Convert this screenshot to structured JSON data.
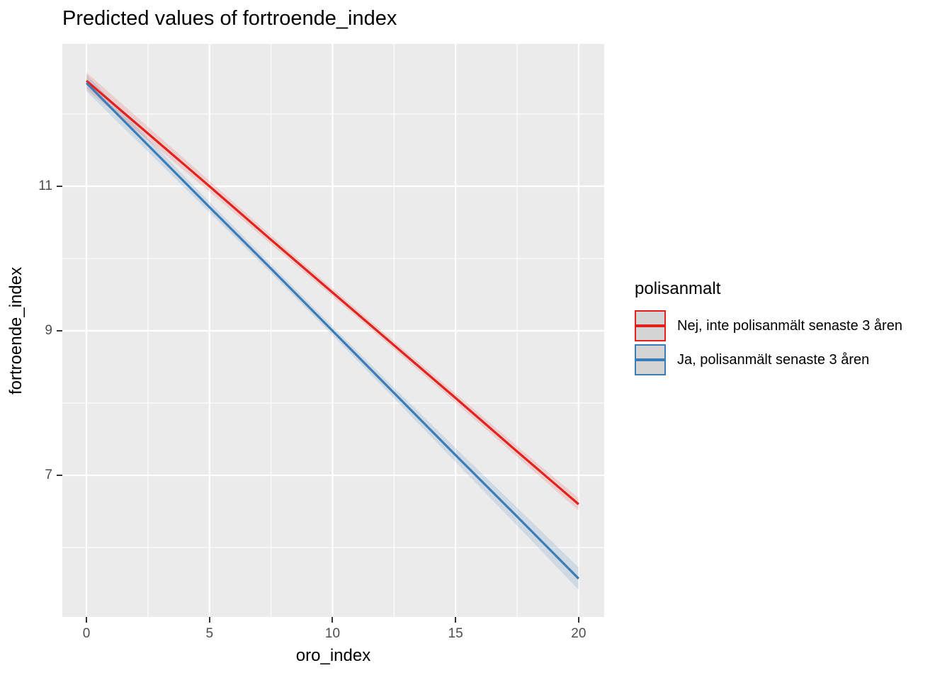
{
  "chart_data": {
    "type": "line",
    "title": "Predicted values of fortroende_index",
    "xlabel": "oro_index",
    "ylabel": "fortroende_index",
    "xlim": [
      -0.98,
      21.04
    ],
    "ylim": [
      5.04,
      12.97
    ],
    "x_major_ticks": [
      0,
      5,
      10,
      15,
      20
    ],
    "x_tick_labels": [
      "0",
      "5",
      "10",
      "15",
      "20"
    ],
    "x_minor_ticks": [
      2.5,
      7.5,
      12.5,
      17.5
    ],
    "y_major_ticks": [
      11,
      9,
      7
    ],
    "y_tick_labels": [
      "11",
      "9",
      "7"
    ],
    "y_minor_ticks": [
      12,
      10,
      8,
      6
    ],
    "grid": true,
    "panel_background": "#EBEBEB",
    "grid_color": "#FFFFFF",
    "tick_label_color": "#4D4D4D",
    "tick_mark_color": "#333333",
    "x": [
      0,
      2.5,
      5,
      7.5,
      10,
      12.5,
      15,
      17.5,
      20
    ],
    "series": [
      {
        "name": "Nej, inte polisanmält senaste 3 åren",
        "color": "#E3211C",
        "band_color": "rgba(227, 33, 28, 0.15)",
        "y": [
          12.46,
          11.73,
          11.0,
          10.26,
          9.53,
          8.8,
          8.07,
          7.33,
          6.6
        ],
        "ci_half_width": [
          0.115,
          0.093,
          0.075,
          0.061,
          0.054,
          0.055,
          0.063,
          0.073,
          0.086
        ]
      },
      {
        "name": "Ja, polisanmält senaste 3 åren",
        "color": "#3A7CB8",
        "band_color": "rgba(58, 124, 184, 0.16)",
        "y": [
          12.43,
          11.57,
          10.71,
          9.86,
          9.0,
          8.14,
          7.28,
          6.43,
          5.57
        ],
        "ci_half_width": [
          0.115,
          0.092,
          0.072,
          0.06,
          0.061,
          0.074,
          0.097,
          0.124,
          0.155
        ]
      }
    ],
    "legend": {
      "title": "polisanmalt",
      "position": "right",
      "key_fill": "#D4D4D4"
    }
  }
}
